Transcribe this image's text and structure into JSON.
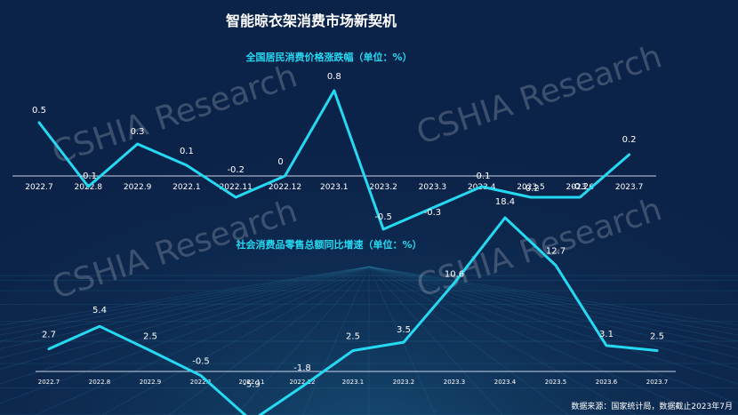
{
  "title": "智能晾衣架消费市场新契机",
  "watermark": "CSHIA Research",
  "source_note": "数据来源：国家统计局，数据截止2023年7月",
  "colors": {
    "background": "#0c2349",
    "line": "#26d9f2",
    "title_accent": "#26d9f2",
    "axis": "#c9d3e6"
  },
  "chart_data": [
    {
      "type": "line",
      "title": "全国居民消费价格涨跌幅（单位：%）",
      "categories": [
        "2022.7",
        "2022.8",
        "2022.9",
        "2022.1",
        "2022.11",
        "2022.12",
        "2023.1",
        "2023.2",
        "2023.3",
        "2023.4",
        "2023.5",
        "2023.6",
        "2023.7"
      ],
      "series": [
        {
          "values": [
            0.5,
            -0.1,
            0.3,
            0.1,
            -0.2,
            0,
            0.8,
            -0.5,
            -0.3,
            -0.1,
            -0.2,
            -0.2,
            0.2
          ]
        }
      ],
      "data_labels": [
        "0.5",
        "-0.1",
        "0.3",
        "0.1",
        "-0.2",
        "0",
        "0.8",
        "-0.5",
        "-0.3",
        "-0.1",
        "-0.2",
        "-0.2",
        "0.2"
      ],
      "ylim": [
        -0.5,
        0.8
      ],
      "grid": false
    },
    {
      "type": "line",
      "title": "社会消费品零售总额同比增速（单位：%）",
      "categories": [
        "2022.7",
        "2022.8",
        "2022.9",
        "2022.1",
        "2022.11",
        "2022.12",
        "2023.1",
        "2023.2",
        "2023.3",
        "2023.4",
        "2023.5",
        "2023.6",
        "2023.7"
      ],
      "series": [
        {
          "values": [
            2.7,
            5.4,
            2.5,
            -0.5,
            -5.9,
            -1.8,
            2.5,
            3.5,
            10.6,
            18.4,
            12.7,
            3.1,
            2.5
          ]
        }
      ],
      "data_labels": [
        "2.7",
        "5.4",
        "2.5",
        "-0.5",
        "-5.9",
        "-1.8",
        "2.5",
        "3.5",
        "10.6",
        "18.4",
        "12.7",
        "3.1",
        "2.5"
      ],
      "ylim": [
        -5.9,
        18.4
      ],
      "grid": false
    }
  ]
}
